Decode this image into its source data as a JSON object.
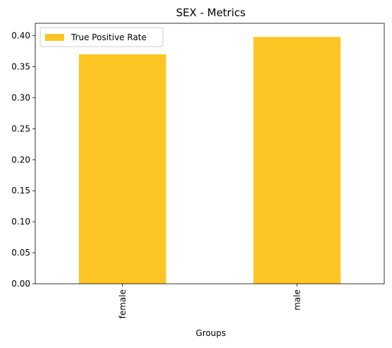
{
  "chart_data": {
    "type": "bar",
    "title": "SEX - Metrics",
    "xlabel": "Groups",
    "ylabel": "",
    "categories": [
      "female",
      "male"
    ],
    "series": [
      {
        "name": "True Positive Rate",
        "values": [
          0.37,
          0.398
        ],
        "color": "#fdc624"
      }
    ],
    "ylim": [
      0,
      0.42
    ],
    "yticks": [
      "0.00",
      "0.05",
      "0.10",
      "0.15",
      "0.20",
      "0.25",
      "0.30",
      "0.35",
      "0.40"
    ],
    "grid": false,
    "legend_position": "top-left",
    "x_tick_rotation": "vertical"
  }
}
